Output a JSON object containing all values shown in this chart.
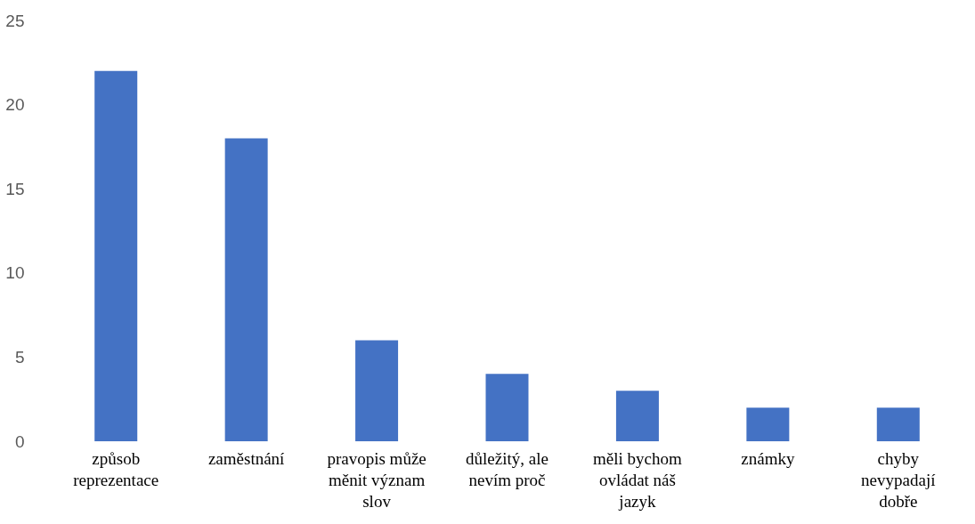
{
  "chart_data": {
    "type": "bar",
    "categories": [
      "způsob reprezentace",
      "zaměstnání",
      "pravopis může měnit význam slov",
      "důležitý, ale nevím proč",
      "měli bychom ovládat náš jazyk",
      "známky",
      "chyby nevypadají dobře"
    ],
    "values": [
      22,
      18,
      6,
      4,
      3,
      2,
      2
    ],
    "color": "#4472c4",
    "ylim": [
      0,
      25
    ],
    "yticks": [
      0,
      5,
      10,
      15,
      20,
      25
    ],
    "grid": false
  }
}
